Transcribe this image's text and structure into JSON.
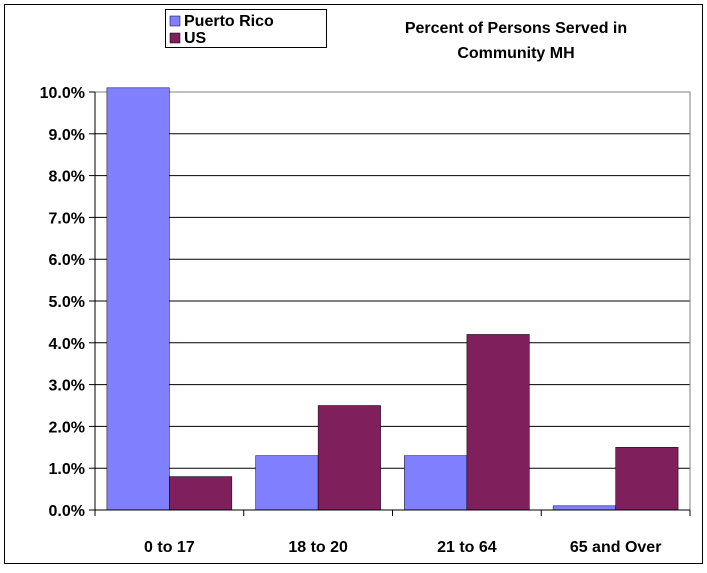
{
  "chart_data": {
    "type": "bar",
    "title": "Percent of Persons Served in\nCommunity MH",
    "title_lines": [
      "Percent of Persons Served in",
      "Community MH"
    ],
    "categories": [
      "0 to 17",
      "18 to 20",
      "21 to 64",
      "65 and Over"
    ],
    "series": [
      {
        "name": "Puerto Rico",
        "color": "#8080FF",
        "values": [
          10.1,
          1.3,
          1.3,
          0.1
        ]
      },
      {
        "name": "US",
        "color": "#7F1F5B",
        "values": [
          0.8,
          2.5,
          4.2,
          1.5
        ]
      }
    ],
    "xlabel": "",
    "ylabel": "",
    "ylim": [
      0,
      10
    ],
    "yticks": [
      "0.0%",
      "1.0%",
      "2.0%",
      "3.0%",
      "4.0%",
      "5.0%",
      "6.0%",
      "7.0%",
      "8.0%",
      "9.0%",
      "10.0%"
    ],
    "grid": true,
    "legend_position": "top-left",
    "plot_background": "#FFFFFF",
    "border_color": "#808080"
  }
}
